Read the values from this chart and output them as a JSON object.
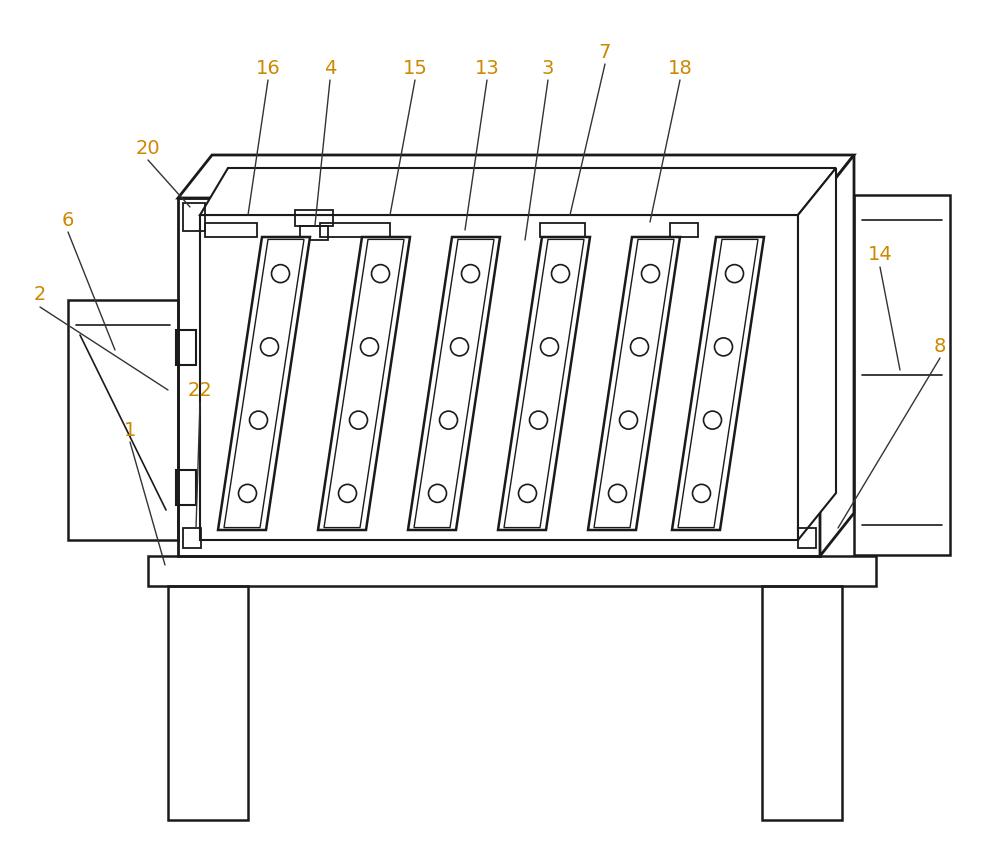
{
  "bg_color": "#ffffff",
  "line_color": "#1a1a1a",
  "label_color": "#cc8800",
  "fig_width": 10.0,
  "fig_height": 8.64,
  "dpi": 100
}
